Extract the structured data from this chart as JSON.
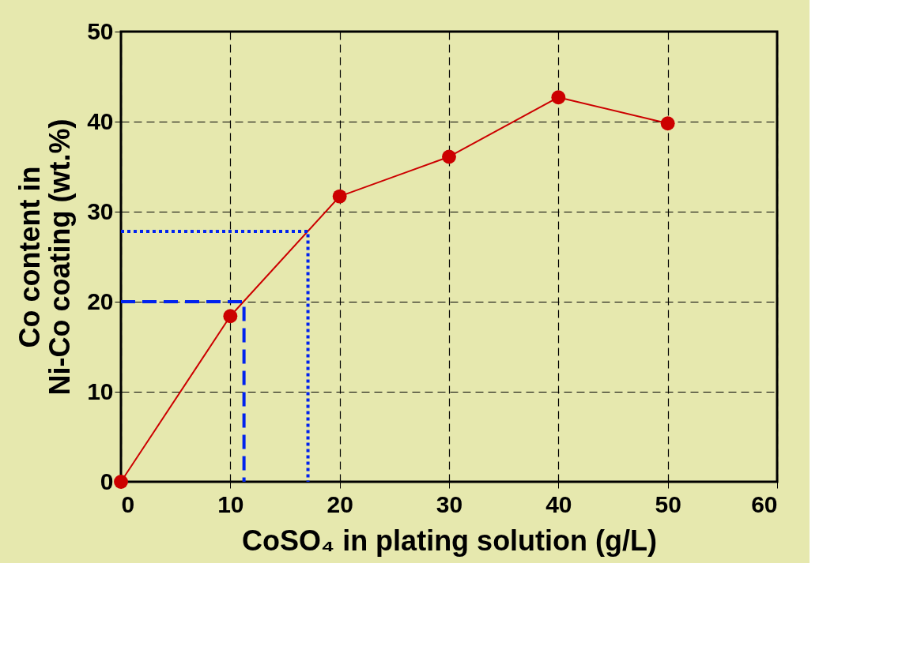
{
  "chart_data": {
    "type": "line",
    "xlabel": "CoSO₄ in plating solution (g/L)",
    "ylabel": "Co content in\nNi-Co coating (wt.%)",
    "x": [
      0,
      10,
      20,
      30,
      40,
      50
    ],
    "series": [
      {
        "color": "#cc0000",
        "values": [
          0,
          18.4,
          31.7,
          36.1,
          42.7,
          39.8
        ],
        "marker": "circle",
        "line_style": "solid"
      },
      {
        "color": "#0022ee",
        "x": [
          0,
          11.25,
          11.25
        ],
        "values": [
          20,
          20,
          0
        ],
        "marker": "none",
        "line_style": "dashed"
      },
      {
        "color": "#0022ee",
        "x": [
          0,
          17.1,
          17.1
        ],
        "values": [
          27.8,
          27.8,
          0
        ],
        "marker": "none",
        "line_style": "dotted"
      }
    ],
    "xlim": [
      0,
      60
    ],
    "xticks": [
      0,
      10,
      20,
      30,
      40,
      50,
      60
    ],
    "ylim": [
      0,
      50
    ],
    "yticks": [
      0,
      10,
      20,
      30,
      40,
      50
    ],
    "grid": true
  }
}
